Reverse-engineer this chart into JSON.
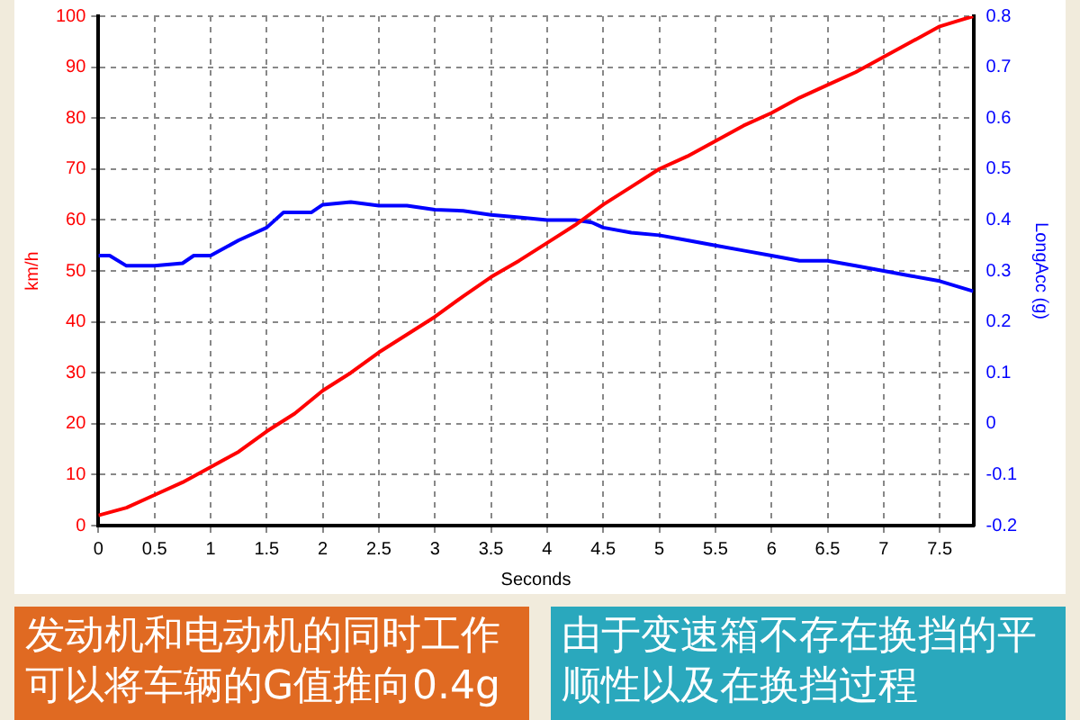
{
  "chart_data": {
    "type": "line",
    "xlabel": "Seconds",
    "ylabel": "km/h",
    "y2label": "LongAcc (g)",
    "xlim": [
      0,
      7.8
    ],
    "xticks": [
      0,
      0.5,
      1,
      1.5,
      2,
      2.5,
      3,
      3.5,
      4,
      4.5,
      5,
      5.5,
      6,
      6.5,
      7,
      7.5
    ],
    "ylim": [
      0,
      100
    ],
    "yticks": [
      0,
      10,
      20,
      30,
      40,
      50,
      60,
      70,
      80,
      90,
      100
    ],
    "y2lim": [
      -0.2,
      0.8
    ],
    "y2ticks": [
      -0.2,
      -0.1,
      0,
      0.1,
      0.2,
      0.3,
      0.4,
      0.5,
      0.6,
      0.7,
      0.8
    ],
    "grid": true,
    "legend": false,
    "marker": "none",
    "line_style": "solid",
    "series": [
      {
        "color": "#ff0000",
        "x": [
          0,
          0.25,
          0.5,
          0.75,
          1,
          1.25,
          1.5,
          1.75,
          2,
          2.25,
          2.5,
          2.75,
          3,
          3.25,
          3.5,
          3.75,
          4,
          4.25,
          4.5,
          4.75,
          5,
          5.25,
          5.5,
          5.75,
          6,
          6.25,
          6.5,
          6.75,
          7,
          7.25,
          7.5,
          7.65,
          7.8
        ],
        "values": [
          2,
          3.5,
          6,
          8.5,
          11.5,
          14.5,
          18.5,
          22,
          26.5,
          30,
          34,
          37.5,
          41,
          45,
          48.8,
          52,
          55.5,
          59,
          63,
          66.5,
          70,
          72.5,
          75.5,
          78.5,
          81,
          84,
          86.5,
          89,
          92,
          95,
          98,
          99,
          100
        ]
      },
      {
        "color": "#0000ff",
        "axis": "y2",
        "x": [
          0,
          0.1,
          0.25,
          0.5,
          0.75,
          0.85,
          1,
          1.25,
          1.5,
          1.65,
          1.9,
          2,
          2.25,
          2.5,
          2.75,
          3,
          3.25,
          3.5,
          3.75,
          4,
          4.25,
          4.4,
          4.5,
          4.75,
          5,
          5.25,
          5.5,
          5.75,
          6,
          6.25,
          6.5,
          6.75,
          7,
          7.25,
          7.5,
          7.8
        ],
        "values": [
          0.33,
          0.33,
          0.31,
          0.31,
          0.315,
          0.33,
          0.33,
          0.36,
          0.385,
          0.415,
          0.415,
          0.43,
          0.435,
          0.428,
          0.428,
          0.42,
          0.418,
          0.41,
          0.405,
          0.4,
          0.4,
          0.395,
          0.385,
          0.375,
          0.37,
          0.36,
          0.35,
          0.34,
          0.33,
          0.32,
          0.32,
          0.31,
          0.3,
          0.29,
          0.28,
          0.26
        ]
      }
    ],
    "annotations": [
      "发动机和电动机的同时工作可以将车辆的G值推向0.4g",
      "由于变速箱不存在换挡的平顺性以及在换挡过程"
    ]
  }
}
